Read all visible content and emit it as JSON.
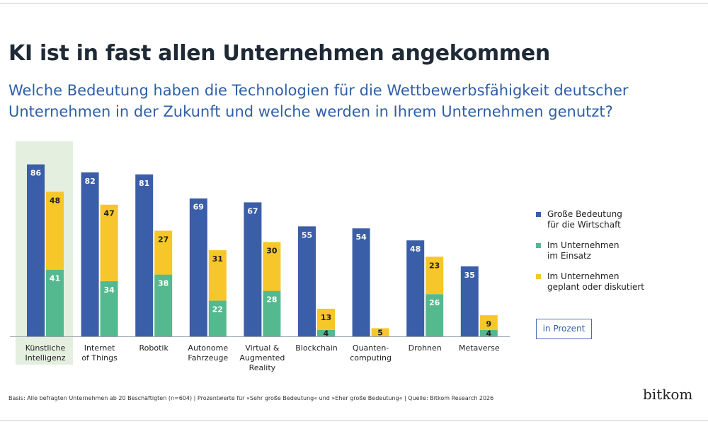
{
  "title": "KI ist in fast allen Unternehmen angekommen",
  "subtitle": "Welche Bedeutung haben die Technologien für die Wettbewerbsfähigkeit deutscher Unternehmen in der Zukunft und welche werden in Ihrem Unternehmen genutzt?",
  "colors": {
    "blue": "#3b5ea8",
    "green": "#55b98f",
    "yellow": "#f7c62a",
    "highlight": "#e5efe0"
  },
  "chart_data": {
    "type": "bar",
    "categories": [
      [
        "Künstliche",
        "Intelligenz"
      ],
      [
        "Internet",
        "of Things"
      ],
      [
        "Robotik"
      ],
      [
        "Autonome",
        "Fahrzeuge"
      ],
      [
        "Virtual &",
        "Augmented",
        "Reality"
      ],
      [
        "Blockchain"
      ],
      [
        "Quanten-",
        "computing"
      ],
      [
        "Drohnen"
      ],
      [
        "Metaverse"
      ]
    ],
    "highlighted_category": "Künstliche Intelligenz",
    "series": [
      {
        "name": "Große Bedeutung für die Wirtschaft",
        "values": [
          86,
          82,
          81,
          69,
          67,
          55,
          54,
          48,
          35
        ]
      },
      {
        "name": "Im Unternehmen im Einsatz",
        "values": [
          41,
          34,
          38,
          22,
          28,
          4,
          null,
          26,
          4
        ]
      },
      {
        "name": "Im Unternehmen geplant oder diskutiert",
        "values": [
          48,
          47,
          27,
          31,
          30,
          13,
          5,
          23,
          9
        ]
      }
    ],
    "stacked_series": [
      "Im Unternehmen im Einsatz",
      "Im Unternehmen geplant oder diskutiert"
    ],
    "unit_label": "in Prozent",
    "legend_position": "right",
    "grid": false
  },
  "legend": [
    {
      "line1": "Große Bedeutung",
      "line2": "für die Wirtschaft"
    },
    {
      "line1": "Im Unternehmen",
      "line2": "im Einsatz"
    },
    {
      "line1": "Im Unternehmen",
      "line2": "geplant oder diskutiert"
    }
  ],
  "footer": "Basis: Alle befragten Unternehmen ab 20 Beschäftigten (n=604) | Prozentwerte für »Sehr große Bedeutung« und »Eher große Bedeutung« | Quelle: Bitkom Research 2026",
  "logo": "bitkom"
}
